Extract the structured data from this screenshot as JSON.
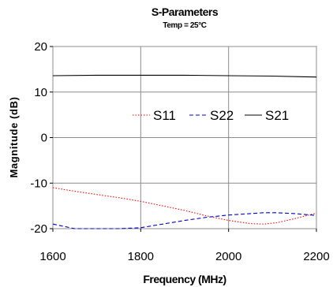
{
  "chart_data": {
    "type": "line",
    "title": "S-Parameters",
    "subtitle": "Temp = 25°C",
    "xlabel": "Frequency (MHz)",
    "ylabel": "Magnitude (dB)",
    "xlim": [
      1600,
      2200
    ],
    "ylim": [
      -20,
      20
    ],
    "xticks": [
      1600,
      1800,
      2000,
      2200
    ],
    "yticks": [
      -20,
      -10,
      0,
      10,
      20
    ],
    "grid": true,
    "legend_position": "middle-right",
    "series": [
      {
        "name": "S11",
        "style": "dotted",
        "color": "#ff0000",
        "x": [
          1600,
          1650,
          1700,
          1750,
          1800,
          1850,
          1900,
          1950,
          2000,
          2050,
          2080,
          2110,
          2150,
          2200
        ],
        "y": [
          -11,
          -11.8,
          -12.5,
          -13.2,
          -14,
          -15,
          -16,
          -17.2,
          -18.2,
          -18.9,
          -19,
          -18.7,
          -17.8,
          -16.6
        ]
      },
      {
        "name": "S22",
        "style": "dashed",
        "color": "#0000cc",
        "x": [
          1600,
          1650,
          1700,
          1750,
          1800,
          1850,
          1900,
          1950,
          2000,
          2050,
          2080,
          2110,
          2150,
          2200
        ],
        "y": [
          -19,
          -20,
          -20,
          -20,
          -19.8,
          -19,
          -18.2,
          -17.5,
          -17,
          -16.7,
          -16.5,
          -16.5,
          -16.7,
          -17.1
        ]
      },
      {
        "name": "S21",
        "style": "solid",
        "color": "#000000",
        "x": [
          1600,
          1700,
          1800,
          1900,
          2000,
          2100,
          2200
        ],
        "y": [
          13.6,
          13.7,
          13.7,
          13.7,
          13.6,
          13.5,
          13.3
        ]
      }
    ]
  }
}
